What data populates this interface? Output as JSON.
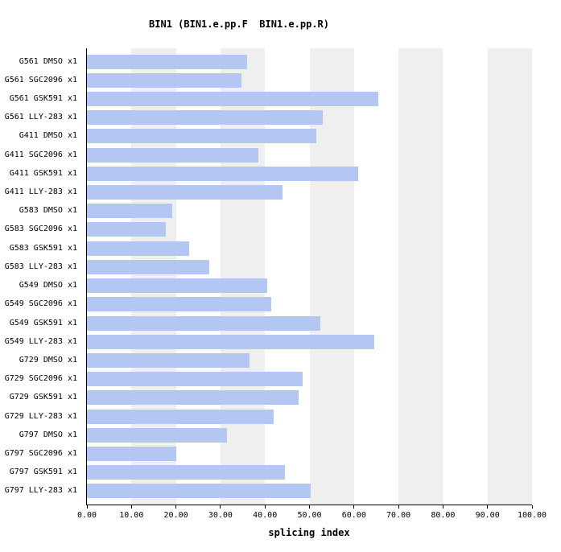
{
  "title": "BIN1 (BIN1.e.pp.F  BIN1.e.pp.R)",
  "chart_data": {
    "type": "bar",
    "orientation": "horizontal",
    "title": "BIN1 (BIN1.e.pp.F  BIN1.e.pp.R)",
    "xlabel": "splicing index",
    "ylabel": "",
    "xlim": [
      0,
      100
    ],
    "x_ticks": [
      0,
      10,
      20,
      30,
      40,
      50,
      60,
      70,
      80,
      90,
      100
    ],
    "x_tick_labels": [
      "0.00",
      "10.00",
      "20.00",
      "30.00",
      "40.00",
      "50.00",
      "60.00",
      "70.00",
      "80.00",
      "90.00",
      "100.00"
    ],
    "grid": "alternating-vertical-bands",
    "legend": "none",
    "categories": [
      "G561 DMSO x1",
      "G561 SGC2096 x1",
      "G561 GSK591 x1",
      "G561 LLY-283 x1",
      "G411 DMSO x1",
      "G411 SGC2096 x1",
      "G411 GSK591 x1",
      "G411 LLY-283 x1",
      "G583 DMSO x1",
      "G583 SGC2096 x1",
      "G583 GSK591 x1",
      "G583 LLY-283 x1",
      "G549 DMSO x1",
      "G549 SGC2096 x1",
      "G549 GSK591 x1",
      "G549 LLY-283 x1",
      "G729 DMSO x1",
      "G729 SGC2096 x1",
      "G729 GSK591 x1",
      "G729 LLY-283 x1",
      "G797 DMSO x1",
      "G797 SGC2096 x1",
      "G797 GSK591 x1",
      "G797 LLY-283 x1"
    ],
    "values": [
      36.0,
      34.7,
      65.5,
      53.0,
      51.5,
      38.5,
      61.0,
      44.0,
      19.2,
      17.7,
      23.0,
      27.5,
      40.5,
      41.5,
      52.5,
      64.5,
      36.5,
      48.5,
      47.5,
      42.0,
      31.5,
      20.0,
      44.5,
      50.2
    ],
    "bar_color": "#b3c7f2",
    "band_color": "#efefef",
    "axis_color": "#000000",
    "text_color": "#000000"
  }
}
